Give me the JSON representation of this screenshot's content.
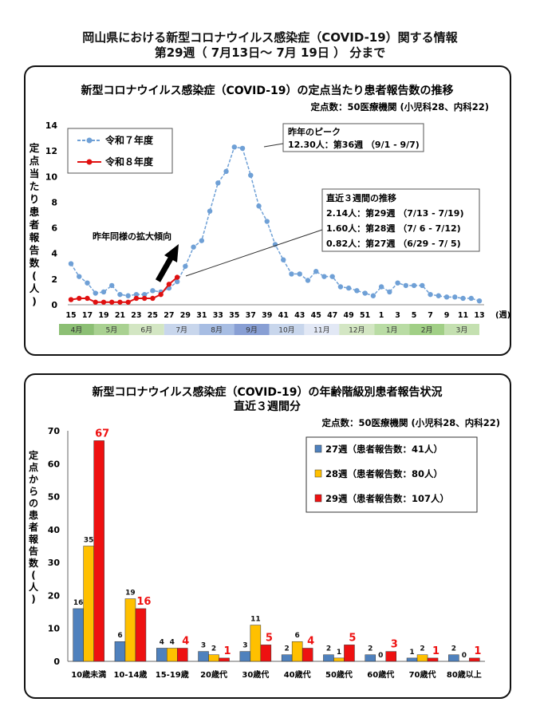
{
  "header": {
    "line1": "岡山県における新型コロナウイルス感染症（COVID-19）関する情報",
    "line2": "第29週（ 7月13日～ 7月 19日 ） 分まで"
  },
  "panel1": {
    "title": "新型コロナウイルス感染症（COVID-19）の定点当たり患者報告数の推移",
    "subtitle": "定点数：50医療機関 (小児科28、内科22)",
    "annotation_arrow": "昨年同様の拡大傾向",
    "peak_box": [
      "昨年のピーク",
      "12.30人：第36週 （9/1 - 9/7)"
    ],
    "recent_box": [
      "直近３週間の推移",
      "2.14人：第29週 （7/13 - 7/19)",
      "1.60人：第28週 （7/ 6 - 7/12)",
      "0.82人：第27週 （6/29 - 7/ 5)"
    ]
  },
  "panel2": {
    "title_line1": "新型コロナウイルス感染症（COVID-19）の年齢階級別患者報告状況",
    "title_line2": "直近３週間分",
    "subtitle": "定点数：50医療機関 (小児科28、内科22)"
  },
  "chart_data": [
    {
      "type": "line",
      "ylabel": "定点当たり患者報告数(人)",
      "xlabel": "(週)",
      "ylim": [
        0,
        14
      ],
      "yticks": [
        0,
        2,
        4,
        6,
        8,
        10,
        12,
        14
      ],
      "x_tick_labels": [
        "15",
        "17",
        "19",
        "21",
        "23",
        "25",
        "27",
        "29",
        "31",
        "33",
        "35",
        "37",
        "39",
        "41",
        "43",
        "45",
        "47",
        "49",
        "51",
        "1",
        "3",
        "5",
        "7",
        "9",
        "11",
        "13"
      ],
      "month_labels": [
        "4月",
        "5月",
        "6月",
        "7月",
        "8月",
        "9月",
        "10月",
        "11月",
        "12月",
        "1月",
        "2月",
        "3月"
      ],
      "month_colors": [
        "#8cbf74",
        "#a9d191",
        "#d3e6c3",
        "#c8d6ec",
        "#a7bde3",
        "#889fd4",
        "#c8d6ec",
        "#e2e8f5",
        "#d3e6c3",
        "#b9dca4",
        "#a1cf86",
        "#c4e0b0"
      ],
      "series": [
        {
          "name": "令和７年度",
          "color": "#6fa0d6",
          "values": [
            3.2,
            2.2,
            1.7,
            0.9,
            1.0,
            1.5,
            0.8,
            0.7,
            0.8,
            0.8,
            1.1,
            1.0,
            1.3,
            1.8,
            3.0,
            4.5,
            5.0,
            7.3,
            9.5,
            10.4,
            12.3,
            12.2,
            10.1,
            7.7,
            6.5,
            4.7,
            3.5,
            2.4,
            2.4,
            1.9,
            2.6,
            2.2,
            2.2,
            1.4,
            1.3,
            1.1,
            0.9,
            0.7,
            1.4,
            1.0,
            1.7,
            1.5,
            1.5,
            1.5,
            0.8,
            0.7,
            0.6,
            0.6,
            0.5,
            0.5,
            0.3
          ]
        },
        {
          "name": "令和８年度",
          "color": "#e01010",
          "values": [
            0.4,
            0.5,
            0.5,
            0.2,
            0.2,
            0.2,
            0.2,
            0.2,
            0.5,
            0.5,
            0.5,
            0.8,
            1.6,
            2.14
          ]
        }
      ]
    },
    {
      "type": "bar",
      "ylabel": "定点からの患者報告数(人)",
      "ylim": [
        0,
        70
      ],
      "yticks": [
        0,
        10,
        20,
        30,
        40,
        50,
        60,
        70
      ],
      "categories": [
        "10歳未満",
        "10-14歳",
        "15-19歳",
        "20歳代",
        "30歳代",
        "40歳代",
        "50歳代",
        "60歳代",
        "70歳代",
        "80歳以上"
      ],
      "series": [
        {
          "name": "27週（患者報告数：41人）",
          "color": "#4f81bd",
          "values": [
            16,
            6,
            4,
            3,
            3,
            2,
            2,
            2,
            1,
            2
          ]
        },
        {
          "name": "28週（患者報告数：80人）",
          "color": "#ffc000",
          "values": [
            35,
            19,
            4,
            2,
            11,
            6,
            1,
            0,
            2,
            0
          ]
        },
        {
          "name": "29週（患者報告数：107人）",
          "color": "#ee1111",
          "values": [
            67,
            16,
            4,
            1,
            5,
            4,
            5,
            3,
            1,
            1
          ]
        }
      ]
    }
  ]
}
